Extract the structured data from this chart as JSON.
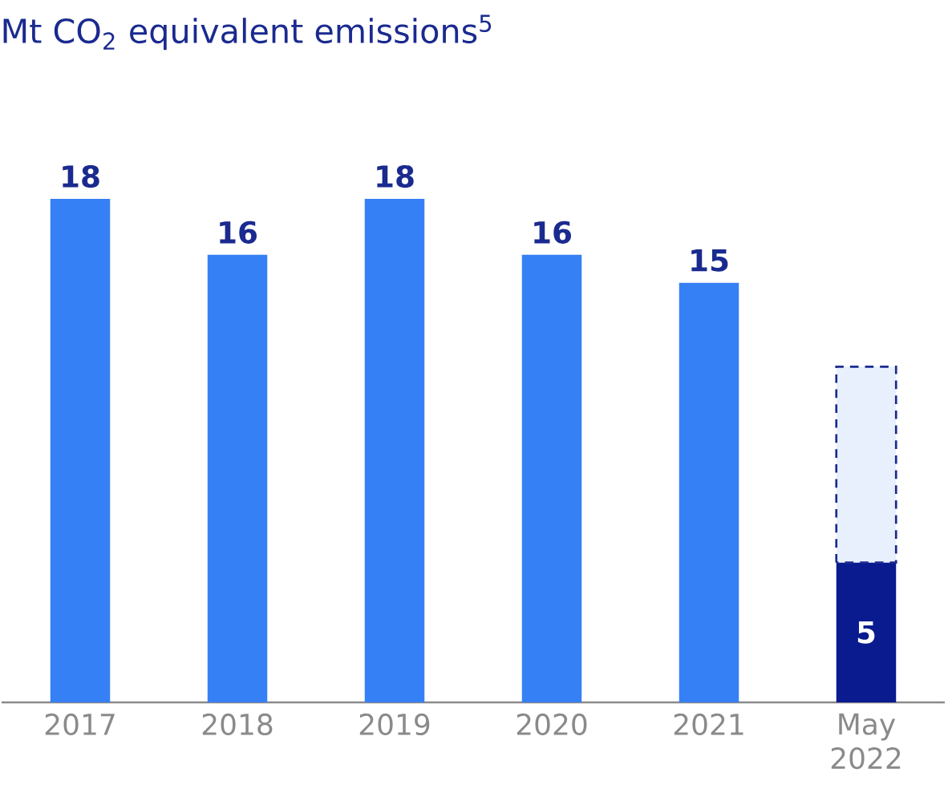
{
  "chart_data": {
    "type": "bar",
    "title": "Mt CO$_{2}$ equivalent emissions$^{5}$",
    "categories": [
      "2017",
      "2018",
      "2019",
      "2020",
      "2021",
      "May 2022"
    ],
    "stacked": true,
    "series": [
      {
        "colors": [
          "#3680f5",
          "#3680f5",
          "#3680f5",
          "#3680f5",
          "#3680f5",
          "#0a1a8f"
        ],
        "values": [
          18,
          16,
          18,
          16,
          15,
          5
        ],
        "value_labels": [
          "18",
          "16",
          "18",
          "16",
          "15",
          "5"
        ]
      },
      {
        "color": "#e8f0fd",
        "values": [
          null,
          null,
          null,
          null,
          null,
          7
        ],
        "line_style": "dashed"
      }
    ]
  }
}
